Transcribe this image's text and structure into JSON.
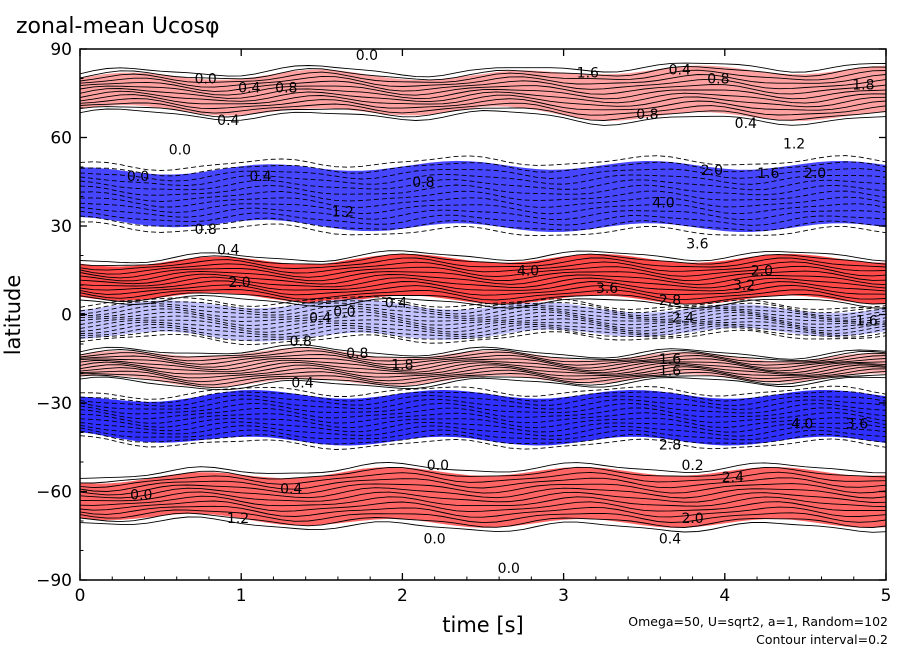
{
  "chart_data": {
    "type": "heatmap",
    "subtype": "filled-contour (Hovmöller diagram)",
    "title": "zonal-mean Ucosφ",
    "xlabel": "time [s]",
    "ylabel": "latitude",
    "xlim": [
      0,
      5
    ],
    "ylim": [
      -90,
      90
    ],
    "x_ticks": [
      0,
      1,
      2,
      3,
      4,
      5
    ],
    "x_tick_labels": [
      "0",
      "1",
      "2",
      "3",
      "4",
      "5"
    ],
    "y_ticks": [
      -90,
      -60,
      -30,
      0,
      30,
      60,
      90
    ],
    "y_tick_labels": [
      "−90",
      "−60",
      "−30",
      "0",
      "30",
      "60",
      "90"
    ],
    "annotation_lines": [
      "Omega=50, U=sqrt2, a=1, Random=102",
      "Contour interval=0.2"
    ],
    "colors": {
      "positive": "#ff0000",
      "negative": "#0000ff",
      "zero": "#ffffff",
      "contour_line": "#000000"
    },
    "contour_interval": 0.2,
    "bands": [
      {
        "sign": "positive",
        "lat": 75,
        "width": 9,
        "peak": [
          {
            "t": 0,
            "v": 0.3
          },
          {
            "t": 1.5,
            "v": 1.2
          },
          {
            "t": 2.5,
            "v": 0.5
          },
          {
            "t": 3.5,
            "v": 2.6
          },
          {
            "t": 5,
            "v": 2.0
          }
        ]
      },
      {
        "sign": "negative",
        "lat": 40,
        "width": 12,
        "peak": [
          {
            "t": 0,
            "v": 1.0
          },
          {
            "t": 1.5,
            "v": 1.6
          },
          {
            "t": 3,
            "v": 3.0
          },
          {
            "t": 3.5,
            "v": 4.0
          },
          {
            "t": 5,
            "v": 3.4
          }
        ]
      },
      {
        "sign": "positive",
        "lat": 12,
        "width": 8,
        "peak": [
          {
            "t": 0,
            "v": 1.0
          },
          {
            "t": 1.5,
            "v": 1.6
          },
          {
            "t": 2.5,
            "v": 4.0
          },
          {
            "t": 4,
            "v": 3.2
          },
          {
            "t": 5,
            "v": 3.0
          }
        ]
      },
      {
        "sign": "negative",
        "lat": -2,
        "width": 7,
        "peak": [
          {
            "t": 0,
            "v": 1.0
          },
          {
            "t": 1.5,
            "v": 1.8
          },
          {
            "t": 2.5,
            "v": 1.0
          },
          {
            "t": 3.5,
            "v": 0.3
          },
          {
            "t": 5,
            "v": 0.2
          }
        ]
      },
      {
        "sign": "positive",
        "lat": -18,
        "width": 6,
        "peak": [
          {
            "t": 0,
            "v": 0.6
          },
          {
            "t": 1,
            "v": 2.4
          },
          {
            "t": 2,
            "v": 1.4
          },
          {
            "t": 3,
            "v": 0.8
          },
          {
            "t": 5,
            "v": 0.3
          }
        ]
      },
      {
        "sign": "negative",
        "lat": -35,
        "width": 9,
        "peak": [
          {
            "t": 0,
            "v": 0.8
          },
          {
            "t": 1.5,
            "v": 2.6
          },
          {
            "t": 3,
            "v": 3.6
          },
          {
            "t": 4,
            "v": 4.0
          },
          {
            "t": 5,
            "v": 3.6
          }
        ]
      },
      {
        "sign": "positive",
        "lat": -62,
        "width": 10,
        "peak": [
          {
            "t": 0,
            "v": 0.4
          },
          {
            "t": 1,
            "v": 1.2
          },
          {
            "t": 2.5,
            "v": 2.8
          },
          {
            "t": 3.5,
            "v": 3.4
          },
          {
            "t": 5,
            "v": 3.0
          }
        ]
      }
    ],
    "contour_labels": [
      {
        "text": "0.0",
        "t": 0.78,
        "lat": 80
      },
      {
        "text": "0.4",
        "t": 1.05,
        "lat": 77
      },
      {
        "text": "0.8",
        "t": 1.28,
        "lat": 77
      },
      {
        "text": "0.0",
        "t": 1.78,
        "lat": 88
      },
      {
        "text": "1.6",
        "t": 3.15,
        "lat": 82
      },
      {
        "text": "0.4",
        "t": 3.72,
        "lat": 83
      },
      {
        "text": "0.8",
        "t": 3.96,
        "lat": 80
      },
      {
        "text": "1.8",
        "t": 4.86,
        "lat": 78
      },
      {
        "text": "0.4",
        "t": 0.92,
        "lat": 66
      },
      {
        "text": "0.8",
        "t": 3.52,
        "lat": 68
      },
      {
        "text": "0.4",
        "t": 4.13,
        "lat": 65
      },
      {
        "text": "1.2",
        "t": 4.43,
        "lat": 58
      },
      {
        "text": "0.0",
        "t": 0.62,
        "lat": 56
      },
      {
        "text": "0.0",
        "t": 0.36,
        "lat": 47
      },
      {
        "text": "0.4",
        "t": 1.12,
        "lat": 47
      },
      {
        "text": "0.8",
        "t": 2.13,
        "lat": 45
      },
      {
        "text": "1.2",
        "t": 1.63,
        "lat": 35
      },
      {
        "text": "2.0",
        "t": 3.92,
        "lat": 49
      },
      {
        "text": "1.6",
        "t": 4.27,
        "lat": 48
      },
      {
        "text": "2.0",
        "t": 4.56,
        "lat": 48
      },
      {
        "text": "0.8",
        "t": 0.78,
        "lat": 29
      },
      {
        "text": "0.4",
        "t": 0.92,
        "lat": 22
      },
      {
        "text": "4.0",
        "t": 3.62,
        "lat": 38
      },
      {
        "text": "3.6",
        "t": 3.83,
        "lat": 24
      },
      {
        "text": "2.0",
        "t": 0.99,
        "lat": 11
      },
      {
        "text": "4.0",
        "t": 2.78,
        "lat": 15
      },
      {
        "text": "2.0",
        "t": 4.23,
        "lat": 15
      },
      {
        "text": "3.6",
        "t": 3.27,
        "lat": 9
      },
      {
        "text": "3.2",
        "t": 4.12,
        "lat": 10
      },
      {
        "text": "2.8",
        "t": 3.66,
        "lat": 5
      },
      {
        "text": "0.4",
        "t": 1.96,
        "lat": 4
      },
      {
        "text": "0.0",
        "t": 1.64,
        "lat": 1
      },
      {
        "text": "0.4",
        "t": 1.49,
        "lat": -1
      },
      {
        "text": "2.4",
        "t": 3.74,
        "lat": -1
      },
      {
        "text": "1.6",
        "t": 4.88,
        "lat": -2
      },
      {
        "text": "0.8",
        "t": 1.37,
        "lat": -9
      },
      {
        "text": "0.8",
        "t": 1.72,
        "lat": -13
      },
      {
        "text": "1.8",
        "t": 2.0,
        "lat": -17
      },
      {
        "text": "1.6",
        "t": 3.66,
        "lat": -15
      },
      {
        "text": "1.6",
        "t": 3.66,
        "lat": -19
      },
      {
        "text": "0.4",
        "t": 1.38,
        "lat": -23
      },
      {
        "text": "4.0",
        "t": 4.48,
        "lat": -37
      },
      {
        "text": "3.6",
        "t": 4.82,
        "lat": -37
      },
      {
        "text": "2.8",
        "t": 3.66,
        "lat": -44
      },
      {
        "text": "0.0",
        "t": 2.22,
        "lat": -51
      },
      {
        "text": "0.2",
        "t": 3.8,
        "lat": -51
      },
      {
        "text": "2.4",
        "t": 4.05,
        "lat": -55
      },
      {
        "text": "0.0",
        "t": 0.38,
        "lat": -61
      },
      {
        "text": "0.4",
        "t": 1.31,
        "lat": -59
      },
      {
        "text": "2.0",
        "t": 3.8,
        "lat": -69
      },
      {
        "text": "1.2",
        "t": 0.98,
        "lat": -69
      },
      {
        "text": "0.0",
        "t": 2.2,
        "lat": -76
      },
      {
        "text": "0.4",
        "t": 3.66,
        "lat": -76
      },
      {
        "text": "0.0",
        "t": 2.66,
        "lat": -86
      }
    ]
  }
}
